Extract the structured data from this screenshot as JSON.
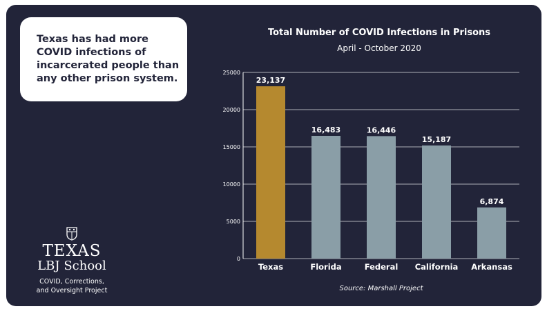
{
  "callout": {
    "text": "Texas has had more COVID infections of incarcerated people than any other prison system."
  },
  "logo": {
    "line1": "TEXAS",
    "line2": "LBJ School",
    "line3": "COVID, Corrections,",
    "line4": "and Oversight Project"
  },
  "colors": {
    "background": "#222439",
    "highlight_bar": "#b5892f",
    "bar": "#8a9ea7",
    "text": "#ffffff",
    "grid": "#ffffff"
  },
  "chart_data": {
    "type": "bar",
    "title": "Total Number of COVID Infections in Prisons",
    "subtitle": "April - October 2020",
    "source": "Source: Marshall Project",
    "categories": [
      "Texas",
      "Florida",
      "Federal",
      "California",
      "Arkansas"
    ],
    "values": [
      23137,
      16483,
      16446,
      15187,
      6874
    ],
    "value_labels": [
      "23,137",
      "16,483",
      "16,446",
      "15,187",
      "6,874"
    ],
    "highlight_index": 0,
    "ylim": [
      0,
      25000
    ],
    "yticks": [
      0,
      5000,
      10000,
      15000,
      20000,
      25000
    ],
    "ytick_labels": [
      "0",
      "5000",
      "10000",
      "15000",
      "20000",
      "25000"
    ],
    "grid": true,
    "xlabel": "",
    "ylabel": ""
  }
}
